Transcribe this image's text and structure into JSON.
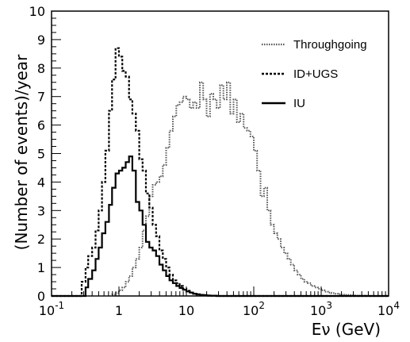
{
  "chart_data": {
    "type": "line",
    "xlabel": "Eν (GeV)",
    "ylabel": "(Number of events)/year",
    "xscale": "log",
    "xlim": [
      0.1,
      10000
    ],
    "ylim": [
      0,
      10
    ],
    "x_ticks": [
      {
        "base": "10",
        "exp": "-1"
      },
      {
        "base": "1",
        "exp": ""
      },
      {
        "base": "10",
        "exp": ""
      },
      {
        "base": "10",
        "exp": "2"
      },
      {
        "base": "10",
        "exp": "3"
      },
      {
        "base": "10",
        "exp": "4"
      }
    ],
    "y_ticks": [
      "0",
      "1",
      "2",
      "3",
      "4",
      "5",
      "6",
      "7",
      "8",
      "9",
      "10"
    ],
    "legend": "top-right",
    "grid": false,
    "series": [
      {
        "name": "Throughgoing",
        "style": "dotted",
        "x": [
          0.1,
          0.79,
          0.89,
          1.0,
          1.12,
          1.26,
          1.41,
          1.58,
          1.78,
          2.0,
          2.24,
          2.51,
          2.82,
          3.16,
          3.55,
          3.98,
          4.47,
          5.01,
          5.62,
          6.31,
          7.08,
          7.94,
          8.91,
          10.0,
          11.22,
          12.59,
          14.13,
          15.85,
          17.78,
          19.95,
          22.39,
          25.12,
          28.18,
          31.62,
          35.48,
          39.81,
          44.67,
          50.12,
          56.23,
          63.1,
          70.79,
          79.43,
          89.13,
          100.0,
          112.2,
          125.9,
          141.3,
          158.5,
          177.8,
          199.5,
          223.9,
          251.2,
          281.8,
          316.2,
          354.8,
          398.1,
          446.7,
          501.2,
          562.3,
          631.0,
          707.9,
          794.3,
          891.3,
          1000.0,
          1122,
          1259,
          1413,
          1585,
          1778,
          1995,
          2239,
          2512,
          2818,
          3162,
          3548,
          3981,
          4467,
          10000
        ],
        "y": [
          0,
          0.05,
          0.1,
          0.2,
          0.3,
          0.5,
          0.7,
          1.0,
          1.3,
          1.7,
          2.3,
          2.8,
          3.5,
          3.9,
          4.0,
          4.2,
          4.6,
          5.2,
          5.8,
          6.3,
          6.7,
          6.8,
          7.0,
          6.9,
          6.6,
          6.8,
          6.6,
          7.5,
          6.9,
          6.3,
          7.1,
          6.9,
          6.6,
          7.4,
          6.9,
          7.5,
          6.4,
          6.9,
          6.1,
          6.4,
          5.9,
          5.8,
          5.6,
          5.1,
          4.4,
          3.5,
          3.8,
          3.0,
          2.5,
          2.2,
          2.0,
          1.7,
          1.5,
          1.3,
          1.1,
          0.9,
          0.75,
          0.6,
          0.5,
          0.45,
          0.35,
          0.3,
          0.25,
          0.2,
          0.15,
          0.12,
          0.1,
          0.08,
          0.06,
          0.05,
          0.04,
          0.03,
          0.02,
          0.01,
          0.01,
          0.01,
          0,
          0
        ]
      },
      {
        "name": "ID+UGS",
        "style": "dashed",
        "x": [
          0.1,
          0.25,
          0.28,
          0.32,
          0.35,
          0.4,
          0.45,
          0.5,
          0.56,
          0.63,
          0.71,
          0.79,
          0.89,
          1.0,
          1.12,
          1.26,
          1.41,
          1.58,
          1.78,
          2.0,
          2.24,
          2.51,
          2.82,
          3.16,
          3.55,
          3.98,
          4.47,
          5.01,
          5.62,
          6.31,
          7.08,
          7.94,
          8.91,
          10.0,
          11.22,
          12.59,
          14.13,
          15.85,
          17.78,
          19.95,
          22.39,
          25.12,
          28.18,
          31.62,
          35.48,
          39.81,
          10000
        ],
        "y": [
          0,
          0,
          0.5,
          1.0,
          1.4,
          1.7,
          2.3,
          3.0,
          4.0,
          5.1,
          6.5,
          7.6,
          8.7,
          8.4,
          7.9,
          7.7,
          6.9,
          6.4,
          5.8,
          4.8,
          4.4,
          3.6,
          3.1,
          2.5,
          2.1,
          1.6,
          1.3,
          1.0,
          0.75,
          0.55,
          0.45,
          0.35,
          0.25,
          0.18,
          0.12,
          0.08,
          0.05,
          0.03,
          0.02,
          0.01,
          0.01,
          0.01,
          0,
          0,
          0,
          0,
          0
        ]
      },
      {
        "name": "IU",
        "style": "solid",
        "x": [
          0.1,
          0.28,
          0.32,
          0.35,
          0.4,
          0.45,
          0.5,
          0.56,
          0.63,
          0.71,
          0.79,
          0.89,
          1.0,
          1.12,
          1.26,
          1.41,
          1.58,
          1.78,
          2.0,
          2.24,
          2.51,
          2.82,
          3.16,
          3.55,
          3.98,
          4.47,
          5.01,
          5.62,
          6.31,
          7.08,
          7.94,
          8.91,
          10.0,
          11.22,
          12.59,
          14.13,
          15.85,
          17.78,
          19.95,
          22.39,
          25.12,
          28.18,
          31.62,
          10000
        ],
        "y": [
          0,
          0,
          0.3,
          0.6,
          0.9,
          1.3,
          1.7,
          2.2,
          2.6,
          3.2,
          3.8,
          4.3,
          4.4,
          4.5,
          4.7,
          4.9,
          4.4,
          3.3,
          3.0,
          2.5,
          1.9,
          1.7,
          1.6,
          1.4,
          1.1,
          0.9,
          0.7,
          0.55,
          0.45,
          0.35,
          0.28,
          0.22,
          0.16,
          0.12,
          0.08,
          0.06,
          0.04,
          0.03,
          0.02,
          0.01,
          0.01,
          0,
          0,
          0
        ]
      }
    ]
  }
}
